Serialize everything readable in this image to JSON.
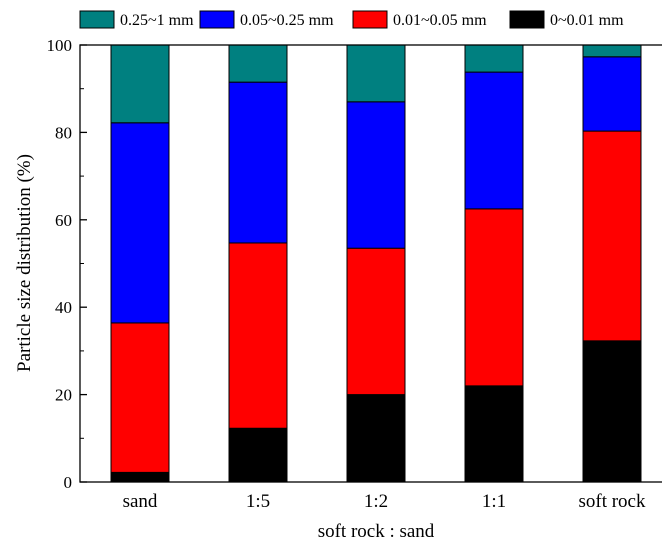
{
  "chart_data": {
    "type": "bar",
    "stacked": true,
    "orientation": "vertical",
    "title": "",
    "xlabel": "soft rock : sand",
    "ylabel": "Particle size distribution (%)",
    "ylim": [
      0,
      100
    ],
    "yticks": [
      0,
      20,
      40,
      60,
      80,
      100
    ],
    "grid": false,
    "legend_position": "top",
    "categories": [
      "sand",
      "1:5",
      "1:2",
      "1:1",
      "soft rock"
    ],
    "series": [
      {
        "name": "0~0.01 mm",
        "color": "#000000",
        "values": [
          2.2,
          12.3,
          20.0,
          22.0,
          32.3
        ]
      },
      {
        "name": "0.01~0.05 mm",
        "color": "#ff0000",
        "values": [
          34.2,
          42.4,
          33.5,
          40.5,
          48.0
        ]
      },
      {
        "name": "0.05~0.25 mm",
        "color": "#0000ff",
        "values": [
          45.8,
          36.8,
          33.5,
          31.3,
          17.0
        ]
      },
      {
        "name": "0.25~1 mm",
        "color": "#008080",
        "values": [
          17.8,
          8.5,
          13.0,
          6.2,
          2.7
        ]
      }
    ],
    "legend_order": [
      3,
      2,
      1,
      0
    ]
  }
}
